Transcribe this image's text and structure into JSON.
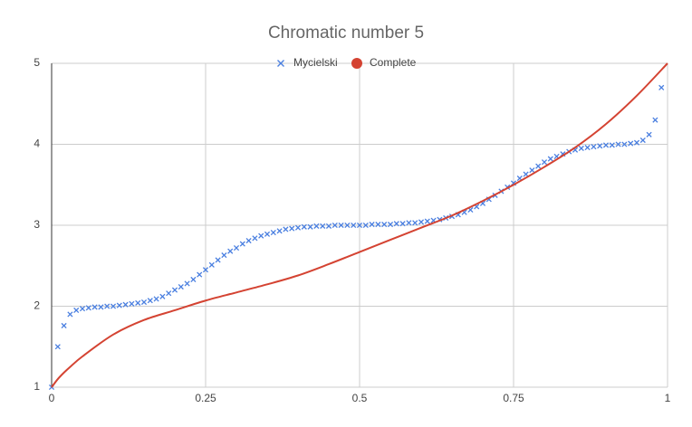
{
  "chart_data": {
    "type": "scatter-line",
    "title": "Chromatic number 5",
    "xlim": [
      0,
      1
    ],
    "xticks": [
      0,
      0.25,
      0.5,
      0.75,
      1
    ],
    "ylim": [
      1,
      5
    ],
    "yticks": [
      1,
      2,
      3,
      4,
      5
    ],
    "grid": true,
    "legend": "top",
    "series": [
      {
        "name": "Mycielski",
        "color": "#4a7fe0",
        "marker": "x",
        "x": [
          0,
          0.01,
          0.02,
          0.03,
          0.04,
          0.05,
          0.06,
          0.07,
          0.08,
          0.09,
          0.1,
          0.11,
          0.12,
          0.13,
          0.14,
          0.15,
          0.16,
          0.17,
          0.18,
          0.19,
          0.2,
          0.21,
          0.22,
          0.23,
          0.24,
          0.25,
          0.26,
          0.27,
          0.28,
          0.29,
          0.3,
          0.31,
          0.32,
          0.33,
          0.34,
          0.35,
          0.36,
          0.37,
          0.38,
          0.39,
          0.4,
          0.41,
          0.42,
          0.43,
          0.44,
          0.45,
          0.46,
          0.47,
          0.48,
          0.49,
          0.5,
          0.51,
          0.52,
          0.53,
          0.54,
          0.55,
          0.56,
          0.57,
          0.58,
          0.59,
          0.6,
          0.61,
          0.62,
          0.63,
          0.64,
          0.65,
          0.66,
          0.67,
          0.68,
          0.69,
          0.7,
          0.71,
          0.72,
          0.73,
          0.74,
          0.75,
          0.76,
          0.77,
          0.78,
          0.79,
          0.8,
          0.81,
          0.82,
          0.83,
          0.84,
          0.85,
          0.86,
          0.87,
          0.88,
          0.89,
          0.9,
          0.91,
          0.92,
          0.93,
          0.94,
          0.95,
          0.96,
          0.97,
          0.98,
          0.99
        ],
        "values": [
          1.0,
          1.5,
          1.76,
          1.9,
          1.95,
          1.97,
          1.98,
          1.99,
          1.99,
          2.0,
          2.0,
          2.01,
          2.02,
          2.03,
          2.04,
          2.05,
          2.07,
          2.09,
          2.12,
          2.16,
          2.2,
          2.24,
          2.28,
          2.33,
          2.39,
          2.45,
          2.51,
          2.57,
          2.63,
          2.68,
          2.72,
          2.77,
          2.81,
          2.84,
          2.87,
          2.89,
          2.91,
          2.93,
          2.95,
          2.96,
          2.97,
          2.98,
          2.98,
          2.99,
          2.99,
          2.99,
          3.0,
          3.0,
          3.0,
          3.0,
          3.0,
          3.0,
          3.01,
          3.01,
          3.01,
          3.01,
          3.02,
          3.02,
          3.03,
          3.03,
          3.04,
          3.05,
          3.06,
          3.07,
          3.09,
          3.11,
          3.13,
          3.16,
          3.19,
          3.23,
          3.27,
          3.32,
          3.37,
          3.42,
          3.47,
          3.52,
          3.58,
          3.63,
          3.68,
          3.73,
          3.78,
          3.82,
          3.85,
          3.88,
          3.91,
          3.93,
          3.95,
          3.96,
          3.97,
          3.98,
          3.99,
          3.99,
          4.0,
          4.0,
          4.01,
          4.02,
          4.05,
          4.12,
          4.3,
          4.7
        ]
      },
      {
        "name": "Complete",
        "color": "#d44332",
        "marker": "line",
        "x": [
          0,
          0.01,
          0.02,
          0.03,
          0.05,
          0.1,
          0.15,
          0.2,
          0.25,
          0.3,
          0.35,
          0.4,
          0.45,
          0.5,
          0.55,
          0.6,
          0.65,
          0.7,
          0.75,
          0.8,
          0.85,
          0.9,
          0.95,
          1
        ],
        "values": [
          1,
          1.1,
          1.18,
          1.25,
          1.38,
          1.65,
          1.83,
          1.95,
          2.07,
          2.17,
          2.27,
          2.38,
          2.52,
          2.67,
          2.82,
          2.97,
          3.12,
          3.3,
          3.5,
          3.72,
          3.96,
          4.25,
          4.6,
          5
        ]
      }
    ]
  }
}
